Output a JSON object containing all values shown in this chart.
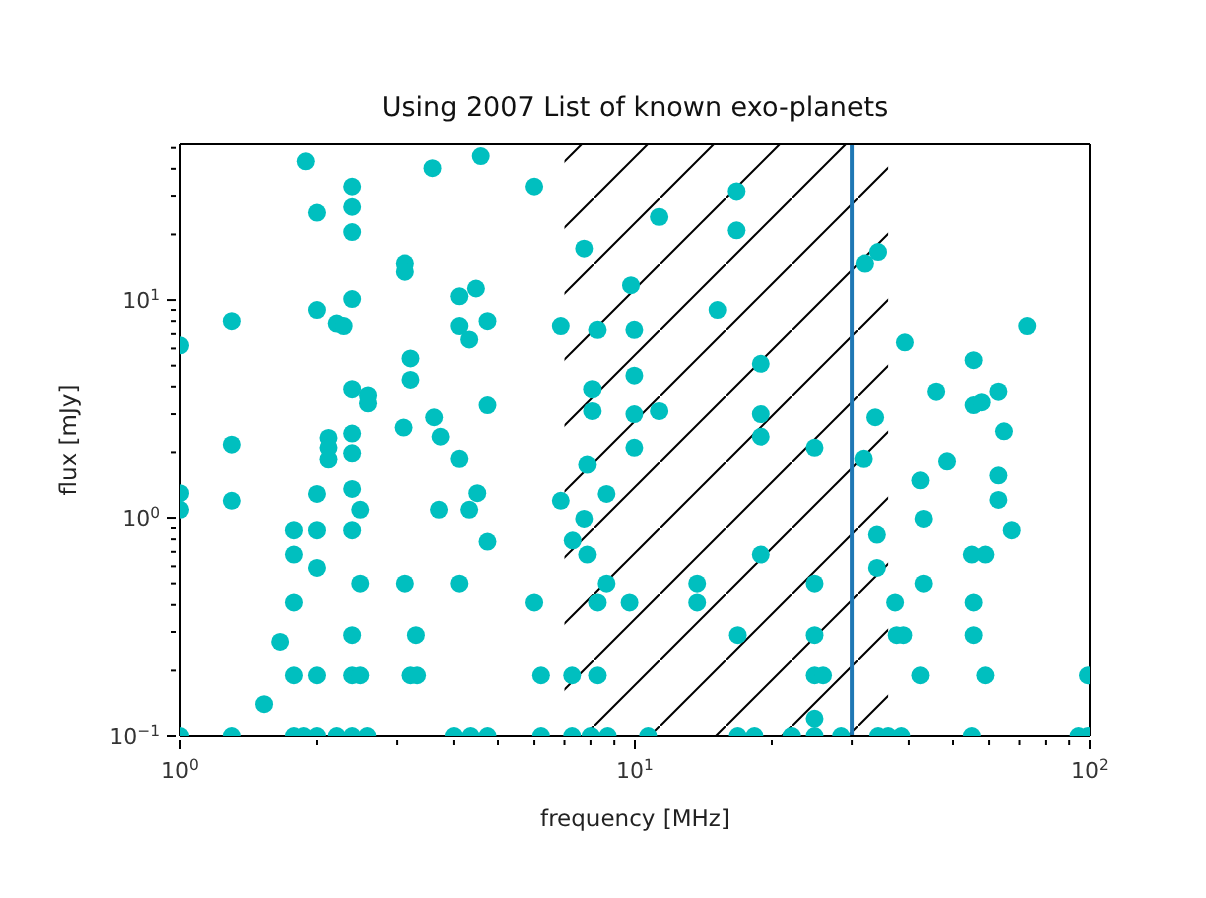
{
  "chart_data": {
    "type": "scatter",
    "title": "Using 2007 List of known exo-planets",
    "xlabel": "frequency [MHz]",
    "ylabel": "flux [mJy]",
    "log": "xy",
    "marker": "circle",
    "color": "#00bfbf",
    "x": [
      1.89,
      3.59,
      4.58,
      2.39,
      2.39,
      2.39,
      2.0,
      3.12,
      3.12,
      2.39,
      4.11,
      4.47,
      2.0,
      1.3,
      2.21,
      2.29,
      4.11,
      4.32,
      1.0,
      3.21,
      3.21,
      2.39,
      2.59,
      2.59,
      3.1,
      3.62,
      3.74,
      4.11,
      1.3,
      2.12,
      2.12,
      2.12,
      2.39,
      2.39,
      2.39,
      2.0,
      1.0,
      1.0,
      1.3,
      2.49,
      3.71,
      4.32,
      4.5,
      1.78,
      2.0,
      2.39,
      1.78,
      2.0,
      2.49,
      3.12,
      4.11,
      1.78,
      1.66,
      2.39,
      3.3,
      1.78,
      2.0,
      2.39,
      2.49,
      3.21,
      3.32,
      1.53,
      1.0,
      1.3,
      1.78,
      1.87,
      2.0,
      2.21,
      2.39,
      2.58,
      4.0,
      4.35,
      6.0,
      16.7,
      11.3,
      16.7,
      7.74,
      9.8,
      4.74,
      6.87,
      8.27,
      9.97,
      15.2,
      18.9,
      8.06,
      8.06,
      9.97,
      9.97,
      11.3,
      18.9,
      18.9,
      4.74,
      9.97,
      7.86,
      6.87,
      8.65,
      7.74,
      7.3,
      7.86,
      4.74,
      18.9,
      6.0,
      8.65,
      8.27,
      9.73,
      13.7,
      13.7,
      16.8,
      6.21,
      7.28,
      8.27,
      4.74,
      6.21,
      7.28,
      8.0,
      8.7,
      10.7,
      16.8,
      18.3,
      32.0,
      34.2,
      72.8,
      39.2,
      55.5,
      45.9,
      55.5,
      57.8,
      62.9,
      33.7,
      64.7,
      24.8,
      31.8,
      48.5,
      42.4,
      62.9,
      62.9,
      43.1,
      67.3,
      34.0,
      34.0,
      55.0,
      58.9,
      24.8,
      43.1,
      37.3,
      55.5,
      24.8,
      37.6,
      38.9,
      55.5,
      24.8,
      25.9,
      42.4,
      58.9,
      99,
      24.8,
      22.1,
      24.8,
      28.4,
      34.2,
      36.0,
      38.5,
      55.0,
      94.4,
      99
    ],
    "values": [
      43.3,
      40.3,
      45.8,
      33.1,
      26.8,
      20.5,
      25.2,
      14.7,
      13.5,
      10.1,
      10.4,
      11.3,
      9.0,
      8.0,
      7.8,
      7.6,
      7.6,
      6.6,
      6.2,
      5.4,
      4.3,
      3.9,
      3.65,
      3.36,
      2.6,
      2.9,
      2.36,
      1.87,
      2.17,
      2.33,
      2.1,
      1.86,
      2.44,
      1.98,
      1.36,
      1.29,
      1.3,
      1.09,
      1.2,
      1.09,
      1.09,
      1.09,
      1.3,
      0.88,
      0.88,
      0.88,
      0.68,
      0.59,
      0.5,
      0.5,
      0.5,
      0.41,
      0.27,
      0.29,
      0.29,
      0.19,
      0.19,
      0.19,
      0.19,
      0.19,
      0.19,
      0.14,
      0.1,
      0.1,
      0.1,
      0.1,
      0.1,
      0.1,
      0.1,
      0.1,
      0.1,
      0.1,
      33.1,
      31.5,
      24.1,
      20.9,
      17.2,
      11.7,
      8.0,
      7.6,
      7.3,
      7.3,
      9.0,
      5.1,
      3.9,
      3.1,
      4.5,
      3.0,
      3.1,
      3.0,
      2.36,
      3.3,
      2.1,
      1.76,
      1.2,
      1.29,
      0.99,
      0.79,
      0.68,
      0.78,
      0.68,
      0.41,
      0.5,
      0.41,
      0.41,
      0.5,
      0.41,
      0.29,
      0.19,
      0.19,
      0.19,
      0.1,
      0.1,
      0.1,
      0.1,
      0.1,
      0.1,
      0.1,
      0.1,
      14.7,
      16.6,
      7.6,
      6.4,
      5.3,
      3.8,
      3.3,
      3.4,
      3.8,
      2.9,
      2.5,
      2.1,
      1.87,
      1.82,
      1.49,
      1.57,
      1.21,
      0.99,
      0.88,
      0.84,
      0.59,
      0.68,
      0.68,
      0.5,
      0.5,
      0.41,
      0.41,
      0.29,
      0.29,
      0.29,
      0.29,
      0.19,
      0.19,
      0.19,
      0.19,
      0.19,
      0.12,
      0.1,
      0.1,
      0.1,
      0.1,
      0.1,
      0.1,
      0.1,
      0.1,
      0.1
    ],
    "xlim": [
      1,
      100
    ],
    "xticks": [
      {
        "value": 1,
        "label": "10$^{0}$"
      },
      {
        "value": 2,
        "label": null
      },
      {
        "value": 3,
        "label": null
      },
      {
        "value": 4,
        "label": null
      },
      {
        "value": 5,
        "label": null
      },
      {
        "value": 6,
        "label": null
      },
      {
        "value": 7,
        "label": null
      },
      {
        "value": 8,
        "label": null
      },
      {
        "value": 9,
        "label": null
      },
      {
        "value": 10,
        "label": "10$^{1}$"
      },
      {
        "value": 20,
        "label": null
      },
      {
        "value": 30,
        "label": null
      },
      {
        "value": 40,
        "label": null
      },
      {
        "value": 50,
        "label": null
      },
      {
        "value": 60,
        "label": null
      },
      {
        "value": 70,
        "label": null
      },
      {
        "value": 80,
        "label": null
      },
      {
        "value": 90,
        "label": null
      },
      {
        "value": 100,
        "label": "10$^{2}$"
      }
    ],
    "ylim": [
      0.1,
      52
    ],
    "yticks": [
      {
        "value": 0.1,
        "label": "10$^{−1}$"
      },
      {
        "value": 0.2,
        "label": null
      },
      {
        "value": 0.3,
        "label": null
      },
      {
        "value": 0.4,
        "label": null
      },
      {
        "value": 0.5,
        "label": null
      },
      {
        "value": 0.6,
        "label": null
      },
      {
        "value": 0.7,
        "label": null
      },
      {
        "value": 0.8,
        "label": null
      },
      {
        "value": 0.9,
        "label": null
      },
      {
        "value": 1,
        "label": "10$^{0}$"
      },
      {
        "value": 2,
        "label": null
      },
      {
        "value": 3,
        "label": null
      },
      {
        "value": 4,
        "label": null
      },
      {
        "value": 5,
        "label": null
      },
      {
        "value": 6,
        "label": null
      },
      {
        "value": 7,
        "label": null
      },
      {
        "value": 8,
        "label": null
      },
      {
        "value": 9,
        "label": null
      },
      {
        "value": 10,
        "label": "10$^{1}$"
      },
      {
        "value": 20,
        "label": null
      },
      {
        "value": 30,
        "label": null
      },
      {
        "value": 40,
        "label": null
      },
      {
        "value": 50,
        "label": null
      }
    ],
    "ref_lines": [
      {
        "axis": "x",
        "value": 30,
        "color": "#1f77b4"
      }
    ],
    "bands": [
      {
        "axis": "x",
        "from": 7,
        "to": 36,
        "color": "#000000"
      }
    ]
  }
}
